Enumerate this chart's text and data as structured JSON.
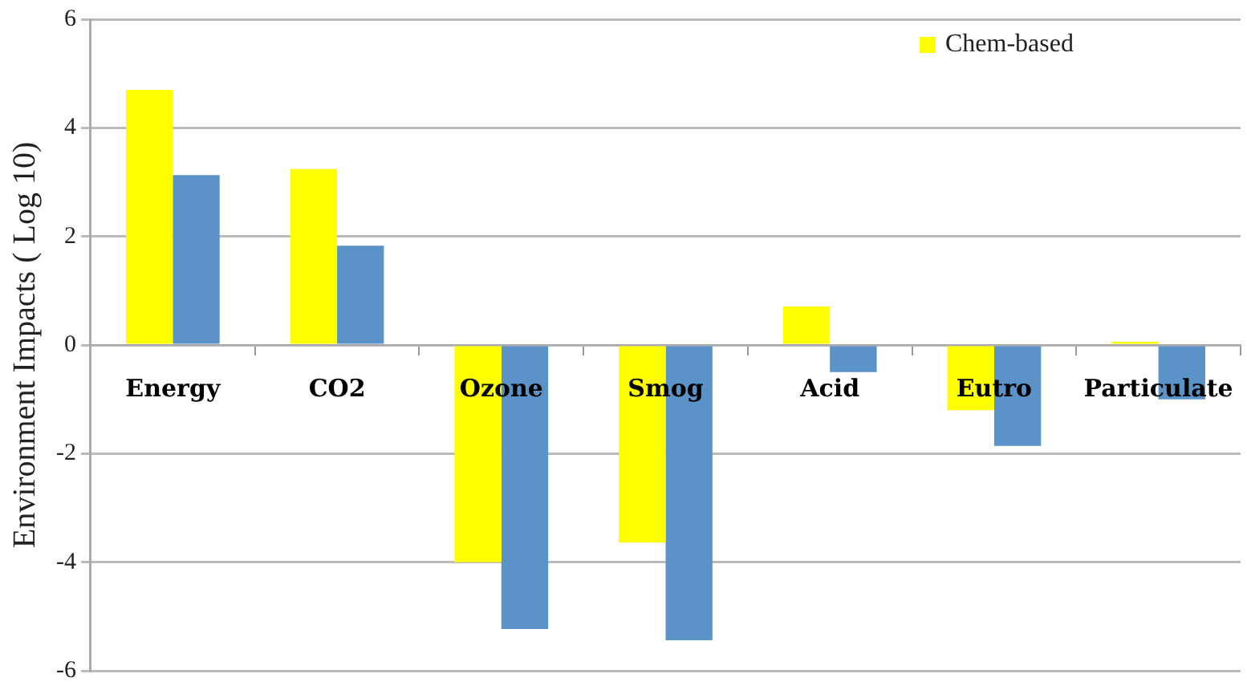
{
  "chart_data": {
    "type": "bar",
    "ylabel": "Environment Impacts ( Log 10)",
    "categories": [
      "Energy",
      "CO2",
      "Ozone",
      "Smog",
      "Acid",
      "Eutro",
      "Particulate"
    ],
    "series": [
      {
        "name": "Chem-based",
        "color": "#ffff00",
        "values": [
          4.7,
          3.24,
          -4.0,
          -3.64,
          0.71,
          -1.2,
          0.06
        ]
      },
      {
        "color": "#5b92c8",
        "values": [
          3.13,
          1.83,
          -5.23,
          -5.44,
          -0.5,
          -1.86,
          -1.0
        ]
      }
    ],
    "ylim": [
      -6,
      6
    ],
    "yticks": [
      -6,
      -4,
      -2,
      0,
      2,
      4,
      6
    ],
    "grid": "y",
    "legend": "top right"
  }
}
